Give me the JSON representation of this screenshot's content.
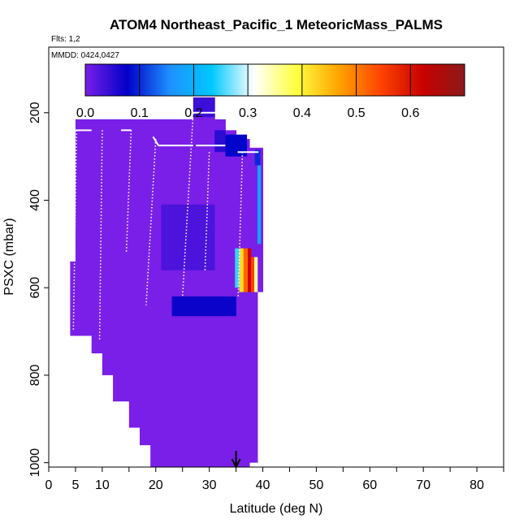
{
  "chart_data": {
    "type": "heatmap",
    "title": "ATOM4 Northeast_Pacific_1 MeteoricMass_PALMS",
    "flights_note": "Flts: 1,2",
    "dates_note": "MMDD: 0424,0427",
    "xlabel": "Latitude (deg N)",
    "ylabel": "PSXC (mbar)",
    "xlim": [
      0,
      85
    ],
    "ylim": [
      1010,
      50
    ],
    "x_ticks": [
      0,
      5,
      10,
      20,
      30,
      40,
      50,
      60,
      70,
      80
    ],
    "x_minor_ticks": [
      15,
      25,
      35,
      45,
      55,
      65,
      75,
      85
    ],
    "y_ticks": [
      200,
      400,
      600,
      800,
      1000
    ],
    "colorbar": {
      "min": 0.0,
      "max": 0.7,
      "ticks": [
        0.0,
        0.1,
        0.2,
        0.3,
        0.4,
        0.5,
        0.6
      ],
      "tick_labels": [
        "0.0",
        "0.1",
        "0.2",
        "0.3",
        "0.4",
        "0.5",
        "0.6"
      ],
      "colors": [
        "#7a1fe8",
        "#0000c8",
        "#1e90ff",
        "#00c8ff",
        "#ffffff",
        "#ffff40",
        "#ffa500",
        "#ff4500",
        "#c80000",
        "#8b1a1a"
      ]
    },
    "columns": [
      {
        "x0": 4,
        "x1": 6,
        "p_top": 540,
        "p_bottom": 710,
        "value": 0.0
      },
      {
        "x0": 5,
        "x1": 8,
        "p_top": 215,
        "p_bottom": 710,
        "value": 0.0
      },
      {
        "x0": 8,
        "x1": 10,
        "p_top": 215,
        "p_bottom": 750,
        "value": 0.0
      },
      {
        "x0": 10,
        "x1": 12,
        "p_top": 215,
        "p_bottom": 800,
        "value": 0.0
      },
      {
        "x0": 12,
        "x1": 15,
        "p_top": 215,
        "p_bottom": 860,
        "value": 0.0
      },
      {
        "x0": 15,
        "x1": 17,
        "p_top": 215,
        "p_bottom": 920,
        "value": 0.0
      },
      {
        "x0": 17,
        "x1": 19,
        "p_top": 215,
        "p_bottom": 960,
        "value": 0.0
      },
      {
        "x0": 19,
        "x1": 24,
        "p_top": 215,
        "p_bottom": 1010,
        "value": 0.0
      },
      {
        "x0": 24,
        "x1": 27,
        "p_top": 215,
        "p_bottom": 1010,
        "value": 0.0
      },
      {
        "x0": 27,
        "x1": 31,
        "p_top": 165,
        "p_bottom": 1010,
        "value": 0.0
      },
      {
        "x0": 31,
        "x1": 33,
        "p_top": 215,
        "p_bottom": 1010,
        "value": 0.0
      },
      {
        "x0": 33,
        "x1": 35,
        "p_top": 240,
        "p_bottom": 1010,
        "value": 0.0
      },
      {
        "x0": 35,
        "x1": 37.5,
        "p_top": 260,
        "p_bottom": 1010,
        "value": 0.0
      },
      {
        "x0": 37.5,
        "x1": 39,
        "p_top": 280,
        "p_bottom": 1000,
        "value": 0.0
      },
      {
        "x0": 39,
        "x1": 40,
        "p_top": 280,
        "p_bottom": 610,
        "value": 0.0
      }
    ],
    "enhanced_cells": [
      {
        "x0": 34.8,
        "x1": 35.6,
        "p0": 510,
        "p1": 600,
        "value": 0.25
      },
      {
        "x0": 35.6,
        "x1": 36.4,
        "p0": 510,
        "p1": 610,
        "value": 0.42
      },
      {
        "x0": 36.4,
        "x1": 37.2,
        "p0": 510,
        "p1": 610,
        "value": 0.52
      },
      {
        "x0": 37.2,
        "x1": 37.8,
        "p0": 510,
        "p1": 610,
        "value": 0.62
      },
      {
        "x0": 37.8,
        "x1": 38.4,
        "p0": 530,
        "p1": 610,
        "value": 0.55
      },
      {
        "x0": 38.4,
        "x1": 39.0,
        "p0": 530,
        "p1": 610,
        "value": 0.35
      },
      {
        "x0": 39.0,
        "x1": 39.6,
        "p0": 320,
        "p1": 500,
        "value": 0.18
      },
      {
        "x0": 38.5,
        "x1": 39.5,
        "p0": 285,
        "p1": 320,
        "value": 0.1
      },
      {
        "x0": 33.0,
        "x1": 37.0,
        "p0": 250,
        "p1": 300,
        "value": 0.08
      },
      {
        "x0": 31.0,
        "x1": 33.0,
        "p0": 240,
        "p1": 290,
        "value": 0.05
      },
      {
        "x0": 27.0,
        "x1": 31.0,
        "p0": 165,
        "p1": 210,
        "value": 0.04
      },
      {
        "x0": 21.0,
        "x1": 31.0,
        "p0": 410,
        "p1": 560,
        "value": 0.03
      },
      {
        "x0": 23.0,
        "x1": 35.0,
        "p0": 620,
        "p1": 665,
        "value": 0.07
      }
    ],
    "flight_track": [
      {
        "lat": 5.2,
        "p": 240,
        "lat2": 4.6,
        "p2": 700
      },
      {
        "lat": 10.0,
        "p": 240,
        "lat2": 9.5,
        "p2": 720
      },
      {
        "lat": 15.4,
        "p": 240,
        "lat2": 14.5,
        "p2": 520
      },
      {
        "lat": 20.0,
        "p": 260,
        "lat2": 18.2,
        "p2": 640
      },
      {
        "lat": 27.0,
        "p": 200,
        "lat2": 25.0,
        "p2": 620
      },
      {
        "lat": 30.0,
        "p": 290,
        "lat2": 29.2,
        "p2": 560
      },
      {
        "lat": 36.2,
        "p": 290,
        "lat2": 35.4,
        "p2": 620
      }
    ],
    "marker_lat": 35.0
  }
}
